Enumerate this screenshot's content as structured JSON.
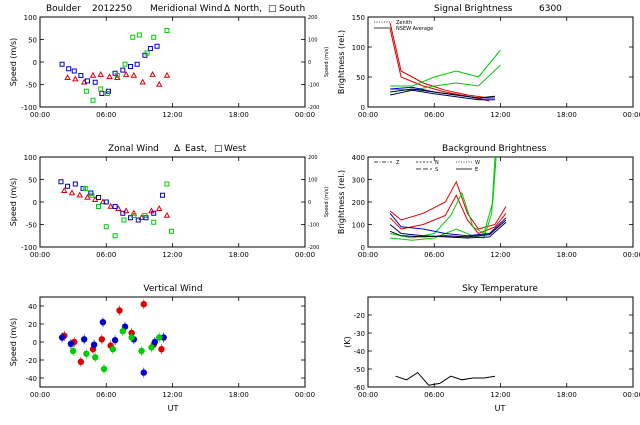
{
  "page": {
    "location_label": "Boulder",
    "date_label": "2012250"
  },
  "colors": {
    "north_east": "#dd0000",
    "south_west": "#0000cc",
    "zenith": "#00cc00",
    "axis": "#000000"
  },
  "chart_data": [
    {
      "id": "meridional",
      "type": "scatter",
      "title": "Meridional Wind",
      "legend_symbol_a": "Δ",
      "legend_text_a": "North,",
      "legend_symbol_b": "□",
      "legend_text_b": "South",
      "ylabel": "Speed (m/s)",
      "y2label": "Speed (m/s)",
      "ylim": [
        -100,
        100
      ],
      "y2lim": [
        -200,
        200
      ],
      "yticks": [
        "100",
        "50",
        "0",
        "-50",
        "-100"
      ],
      "y2ticks": [
        "200",
        "100",
        "0",
        "-100",
        "-200"
      ],
      "xlim": [
        0,
        24
      ],
      "series": [
        {
          "color": "red",
          "marker": "triangle",
          "points": [
            [
              2.5,
              -35
            ],
            [
              3.2,
              -38
            ],
            [
              4.0,
              -45
            ],
            [
              4.8,
              -30
            ],
            [
              5.5,
              -28
            ],
            [
              6.3,
              -33
            ],
            [
              7.0,
              -35
            ],
            [
              7.8,
              -28
            ],
            [
              8.5,
              -30
            ],
            [
              9.3,
              -45
            ],
            [
              10.2,
              -28
            ],
            [
              10.8,
              -50
            ],
            [
              11.5,
              -30
            ]
          ]
        },
        {
          "color": "blue",
          "marker": "square",
          "points": [
            [
              2.0,
              -5
            ],
            [
              2.6,
              -15
            ],
            [
              3.1,
              -20
            ],
            [
              3.7,
              -30
            ],
            [
              4.3,
              -42
            ],
            [
              5.0,
              -45
            ],
            [
              5.6,
              -70
            ],
            [
              6.2,
              -65
            ],
            [
              6.8,
              -25
            ],
            [
              7.5,
              -18
            ],
            [
              8.2,
              -10
            ],
            [
              8.8,
              -5
            ],
            [
              9.5,
              15
            ],
            [
              10.0,
              30
            ],
            [
              10.6,
              35
            ]
          ]
        },
        {
          "color": "green",
          "marker": "square",
          "points": [
            [
              4.2,
              -65
            ],
            [
              4.8,
              -85
            ],
            [
              5.5,
              -60
            ],
            [
              6.1,
              -70
            ],
            [
              7.0,
              -30
            ],
            [
              7.7,
              -5
            ],
            [
              8.4,
              55
            ],
            [
              9.0,
              60
            ],
            [
              9.7,
              20
            ],
            [
              10.3,
              55
            ],
            [
              11.5,
              70
            ]
          ]
        }
      ]
    },
    {
      "id": "signal",
      "type": "line",
      "title": "Signal Brightness",
      "title_value": "6300",
      "legend_a": "Zenith",
      "legend_b": "NSEW Average",
      "ylabel": "Brightness (rel.)",
      "ylim": [
        0,
        150
      ],
      "yticks": [
        "150",
        "100",
        "50",
        "0"
      ],
      "xlim": [
        0,
        24
      ],
      "series": [
        {
          "color": "red",
          "points": [
            [
              2,
              140
            ],
            [
              3,
              60
            ],
            [
              5,
              40
            ],
            [
              7,
              28
            ],
            [
              9,
              20
            ],
            [
              11,
              15
            ]
          ]
        },
        {
          "color": "red",
          "points": [
            [
              2,
              130
            ],
            [
              3,
              50
            ],
            [
              5,
              35
            ],
            [
              7,
              25
            ],
            [
              9,
              18
            ],
            [
              11,
              10
            ]
          ]
        },
        {
          "color": "green",
          "points": [
            [
              2,
              35
            ],
            [
              4,
              35
            ],
            [
              6,
              50
            ],
            [
              8,
              60
            ],
            [
              10,
              50
            ],
            [
              12,
              95
            ]
          ]
        },
        {
          "color": "green",
          "points": [
            [
              2,
              30
            ],
            [
              4,
              28
            ],
            [
              6,
              35
            ],
            [
              8,
              40
            ],
            [
              10,
              35
            ],
            [
              12,
              70
            ]
          ]
        },
        {
          "color": "blue",
          "points": [
            [
              2,
              30
            ],
            [
              4,
              33
            ],
            [
              6,
              25
            ],
            [
              8,
              20
            ],
            [
              10,
              15
            ],
            [
              11.5,
              15
            ]
          ]
        },
        {
          "color": "navy",
          "points": [
            [
              2,
              20
            ],
            [
              4,
              28
            ],
            [
              6,
              22
            ],
            [
              8,
              17
            ],
            [
              10,
              12
            ],
            [
              11.5,
              12
            ]
          ]
        },
        {
          "color": "black",
          "points": [
            [
              2,
              25
            ],
            [
              4,
              30
            ],
            [
              6,
              25
            ],
            [
              8,
              20
            ],
            [
              10,
              15
            ],
            [
              11.5,
              18
            ]
          ]
        }
      ]
    },
    {
      "id": "zonal",
      "type": "scatter",
      "title": "Zonal Wind",
      "legend_symbol_a": "Δ",
      "legend_text_a": "East,",
      "legend_symbol_b": "□",
      "legend_text_b": "West",
      "ylabel": "Speed (m/s)",
      "y2label": "Speed (m/s)",
      "ylim": [
        -100,
        100
      ],
      "y2lim": [
        -200,
        200
      ],
      "yticks": [
        "100",
        "50",
        "0",
        "-50",
        "-100"
      ],
      "y2ticks": [
        "200",
        "100",
        "0",
        "-100",
        "-200"
      ],
      "xlim": [
        0,
        24
      ],
      "series": [
        {
          "color": "red",
          "marker": "triangle",
          "points": [
            [
              2.2,
              25
            ],
            [
              2.9,
              20
            ],
            [
              3.6,
              15
            ],
            [
              4.3,
              10
            ],
            [
              5.0,
              5
            ],
            [
              5.7,
              0
            ],
            [
              6.4,
              -10
            ],
            [
              7.1,
              -15
            ],
            [
              7.8,
              -20
            ],
            [
              8.5,
              -25
            ],
            [
              9.2,
              -35
            ],
            [
              10.1,
              -20
            ],
            [
              10.8,
              -15
            ],
            [
              11.5,
              -30
            ]
          ]
        },
        {
          "color": "blue",
          "marker": "square",
          "points": [
            [
              1.9,
              45
            ],
            [
              2.5,
              35
            ],
            [
              3.2,
              40
            ],
            [
              3.9,
              30
            ],
            [
              4.6,
              20
            ],
            [
              5.3,
              10
            ],
            [
              6.0,
              0
            ],
            [
              6.8,
              -10
            ],
            [
              7.5,
              -25
            ],
            [
              8.2,
              -35
            ],
            [
              8.9,
              -40
            ],
            [
              9.6,
              -35
            ],
            [
              10.3,
              -25
            ],
            [
              11.1,
              15
            ]
          ]
        },
        {
          "color": "green",
          "marker": "square",
          "points": [
            [
              4.1,
              30
            ],
            [
              4.7,
              15
            ],
            [
              5.3,
              -10
            ],
            [
              6.0,
              -55
            ],
            [
              6.8,
              -75
            ],
            [
              7.6,
              -40
            ],
            [
              8.5,
              -30
            ],
            [
              9.5,
              -30
            ],
            [
              10.3,
              -45
            ],
            [
              11.5,
              40
            ],
            [
              11.9,
              -65
            ]
          ]
        }
      ]
    },
    {
      "id": "background",
      "type": "line",
      "title": "Background Brightness",
      "legend_z": "Z",
      "legend_n": "N",
      "legend_s": "S",
      "legend_w": "W",
      "legend_e": "E",
      "ylabel": "Brightness (rel.)",
      "ylim": [
        0,
        400
      ],
      "yticks": [
        "400",
        "300",
        "200",
        "100",
        "0"
      ],
      "xlim": [
        0,
        24
      ],
      "series": [
        {
          "color": "red",
          "points": [
            [
              2,
              160
            ],
            [
              3,
              120
            ],
            [
              5,
              150
            ],
            [
              7,
              200
            ],
            [
              8,
              290
            ],
            [
              9,
              150
            ],
            [
              10,
              80
            ],
            [
              11.5,
              100
            ],
            [
              12.5,
              180
            ]
          ]
        },
        {
          "color": "red",
          "points": [
            [
              2,
              130
            ],
            [
              3,
              80
            ],
            [
              5,
              100
            ],
            [
              7,
              140
            ],
            [
              8,
              230
            ],
            [
              9,
              120
            ],
            [
              10,
              60
            ],
            [
              11.5,
              90
            ],
            [
              12.5,
              150
            ]
          ]
        },
        {
          "color": "green",
          "points": [
            [
              2,
              60
            ],
            [
              4,
              40
            ],
            [
              6,
              60
            ],
            [
              7.5,
              140
            ],
            [
              8.5,
              240
            ],
            [
              9.5,
              90
            ],
            [
              10.5,
              60
            ],
            [
              11.3,
              200
            ],
            [
              11.6,
              400
            ]
          ]
        },
        {
          "color": "green",
          "points": [
            [
              2,
              40
            ],
            [
              4,
              30
            ],
            [
              6,
              40
            ],
            [
              8,
              80
            ],
            [
              9.5,
              50
            ],
            [
              10.5,
              40
            ],
            [
              11.2,
              150
            ],
            [
              11.5,
              400
            ]
          ]
        },
        {
          "color": "blue",
          "points": [
            [
              2,
              150
            ],
            [
              3,
              90
            ],
            [
              5,
              80
            ],
            [
              7,
              60
            ],
            [
              9,
              50
            ],
            [
              11,
              60
            ],
            [
              12.5,
              130
            ]
          ]
        },
        {
          "color": "navy",
          "points": [
            [
              2,
              100
            ],
            [
              3,
              60
            ],
            [
              5,
              50
            ],
            [
              7,
              45
            ],
            [
              9,
              40
            ],
            [
              11,
              45
            ],
            [
              12.5,
              110
            ]
          ]
        },
        {
          "color": "black",
          "points": [
            [
              2,
              70
            ],
            [
              3,
              50
            ],
            [
              5,
              45
            ],
            [
              7,
              50
            ],
            [
              9,
              45
            ],
            [
              11,
              55
            ],
            [
              12.5,
              120
            ]
          ]
        }
      ]
    },
    {
      "id": "vertical",
      "type": "scatter",
      "title": "Vertical Wind",
      "ylabel": "Speed (m/s)",
      "ylim": [
        -50,
        50
      ],
      "yticks": [
        "40",
        "20",
        "0",
        "-20",
        "-40"
      ],
      "xlim": [
        0,
        24
      ],
      "series": [
        {
          "color": "red",
          "marker": "circle",
          "points": [
            [
              2.2,
              7
            ],
            [
              3.1,
              0
            ],
            [
              3.7,
              -22
            ],
            [
              4.8,
              -8
            ],
            [
              5.6,
              3
            ],
            [
              6.4,
              -4
            ],
            [
              7.2,
              35
            ],
            [
              8.3,
              10
            ],
            [
              9.4,
              42
            ],
            [
              10.3,
              -3
            ],
            [
              11.0,
              -8
            ]
          ]
        },
        {
          "color": "blue",
          "marker": "circle",
          "points": [
            [
              2.0,
              5
            ],
            [
              2.8,
              -2
            ],
            [
              4.0,
              3
            ],
            [
              4.9,
              -3
            ],
            [
              5.7,
              22
            ],
            [
              6.8,
              2
            ],
            [
              7.7,
              17
            ],
            [
              8.5,
              3
            ],
            [
              9.4,
              -34
            ],
            [
              10.4,
              0
            ],
            [
              11.2,
              5
            ]
          ]
        },
        {
          "color": "green",
          "marker": "circle",
          "points": [
            [
              3.0,
              -10
            ],
            [
              4.2,
              -13
            ],
            [
              5.0,
              -17
            ],
            [
              5.8,
              -30
            ],
            [
              6.6,
              -8
            ],
            [
              7.5,
              12
            ],
            [
              8.3,
              5
            ],
            [
              9.2,
              -10
            ],
            [
              10.1,
              -6
            ],
            [
              10.8,
              5
            ]
          ]
        }
      ]
    },
    {
      "id": "sky",
      "type": "line",
      "title": "Sky Temperature",
      "ylabel": "(K)",
      "ylim": [
        -60,
        -10
      ],
      "yticks": [
        "-20",
        "-30",
        "-40",
        "-50",
        "-60"
      ],
      "xlim": [
        0,
        24
      ],
      "series": [
        {
          "color": "black",
          "points": [
            [
              2.5,
              -54
            ],
            [
              3.5,
              -56
            ],
            [
              4.5,
              -52
            ],
            [
              5.5,
              -59
            ],
            [
              6.5,
              -58
            ],
            [
              7.5,
              -54
            ],
            [
              8.5,
              -56
            ],
            [
              9.5,
              -55
            ],
            [
              10.5,
              -55
            ],
            [
              11.5,
              -54
            ]
          ]
        }
      ]
    }
  ],
  "xaxis": {
    "label": "UT",
    "ticks": [
      "00:00",
      "06:00",
      "12:00",
      "18:00",
      "00:00"
    ]
  }
}
